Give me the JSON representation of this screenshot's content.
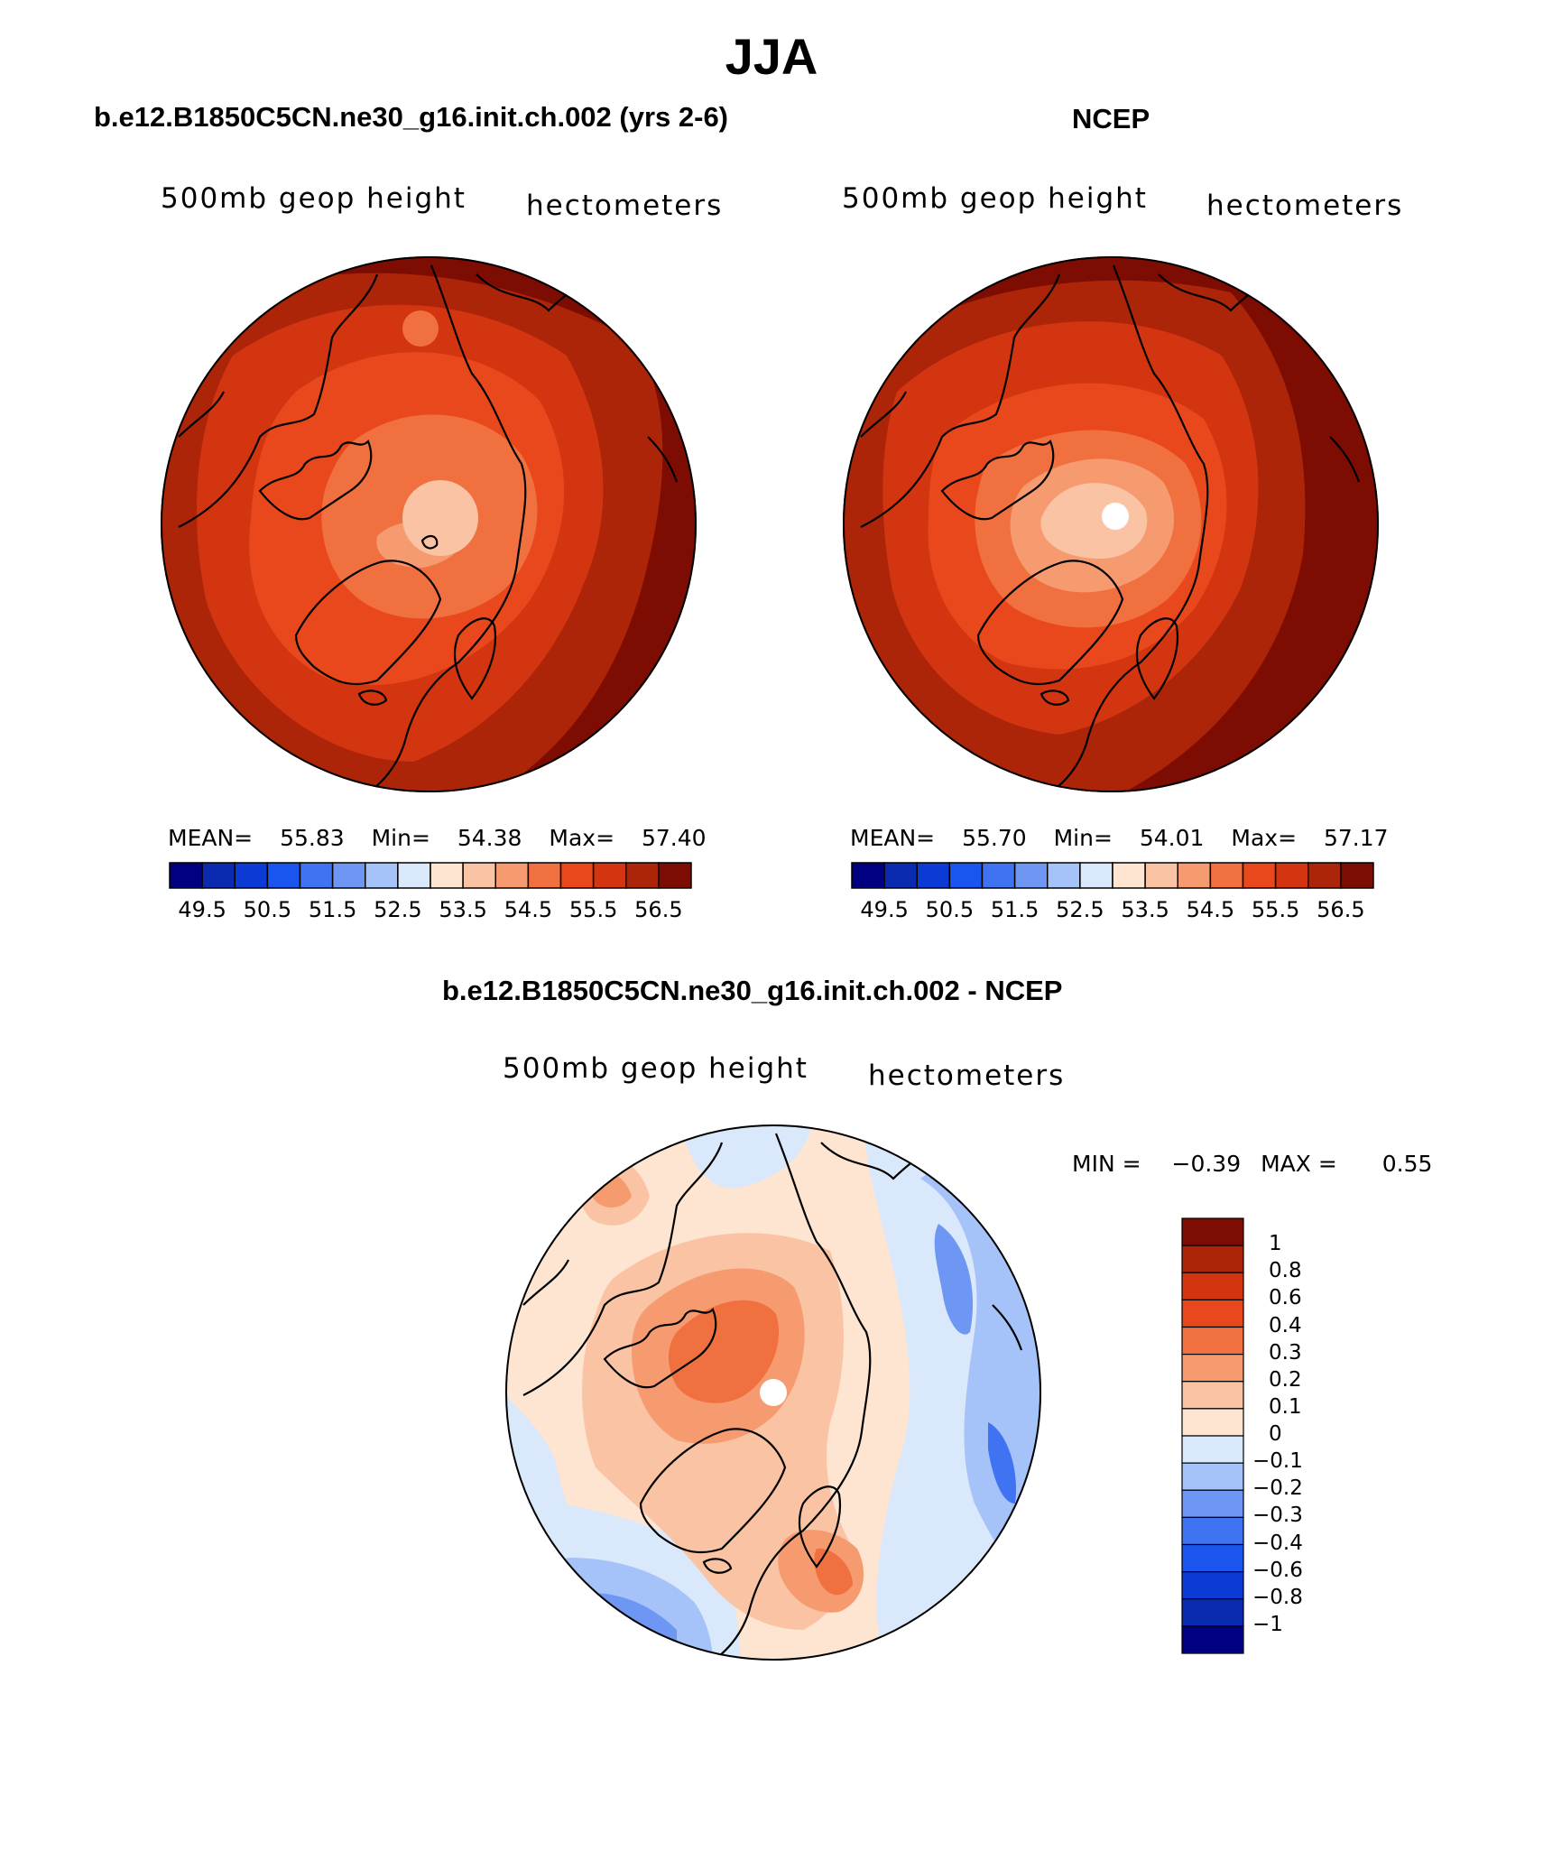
{
  "title": "JJA",
  "panels": {
    "model": {
      "title": "b.e12.B1850C5CN.ne30_g16.init.ch.002 (yrs 2-6)",
      "field_label": "500mb  geop  height",
      "units_label": "hectometers",
      "stats": {
        "mean_label": "MEAN=",
        "mean": "55.83",
        "min_label": "Min=",
        "min": "54.38",
        "max_label": "Max=",
        "max": "57.40"
      }
    },
    "obs": {
      "title": "NCEP",
      "field_label": "500mb  geop  height",
      "units_label": "hectometers",
      "stats": {
        "mean_label": "MEAN=",
        "mean": "55.70",
        "min_label": "Min=",
        "min": "54.01",
        "max_label": "Max=",
        "max": "57.17"
      }
    },
    "diff": {
      "title": "b.e12.B1850C5CN.ne30_g16.init.ch.002 - NCEP",
      "field_label": "500mb  geop  height",
      "units_label": "hectometers",
      "stats": {
        "min_label": "MIN =",
        "min": "−0.39",
        "max_label": "MAX =",
        "max": "0.55"
      }
    }
  },
  "colorbar_abs": {
    "colors": [
      "#000080",
      "#0a2ab0",
      "#0b3ad4",
      "#1a55f0",
      "#3f73f2",
      "#6e97f4",
      "#a5c3f8",
      "#d9e8fb",
      "#fde5d2",
      "#fac4a4",
      "#f69b6f",
      "#f1703f",
      "#e8481c",
      "#d33510",
      "#ac2508",
      "#7d0d02"
    ],
    "tick_labels": [
      "49.5",
      "50.5",
      "51.5",
      "52.5",
      "53.5",
      "54.5",
      "55.5",
      "56.5"
    ]
  },
  "colorbar_diff": {
    "colors": [
      "#7d0d02",
      "#ac2508",
      "#d33510",
      "#e8481c",
      "#f1703f",
      "#f69b6f",
      "#fac4a4",
      "#fde5d2",
      "#d9e8fb",
      "#a5c3f8",
      "#6e97f4",
      "#3f73f2",
      "#1a55f0",
      "#0b3ad4",
      "#0a2ab0",
      "#000080"
    ],
    "tick_labels": [
      "1",
      "0.8",
      "0.6",
      "0.4",
      "0.3",
      "0.2",
      "0.1",
      "0",
      "−0.1",
      "−0.2",
      "−0.3",
      "−0.4",
      "−0.6",
      "−0.8",
      "−1"
    ]
  }
}
